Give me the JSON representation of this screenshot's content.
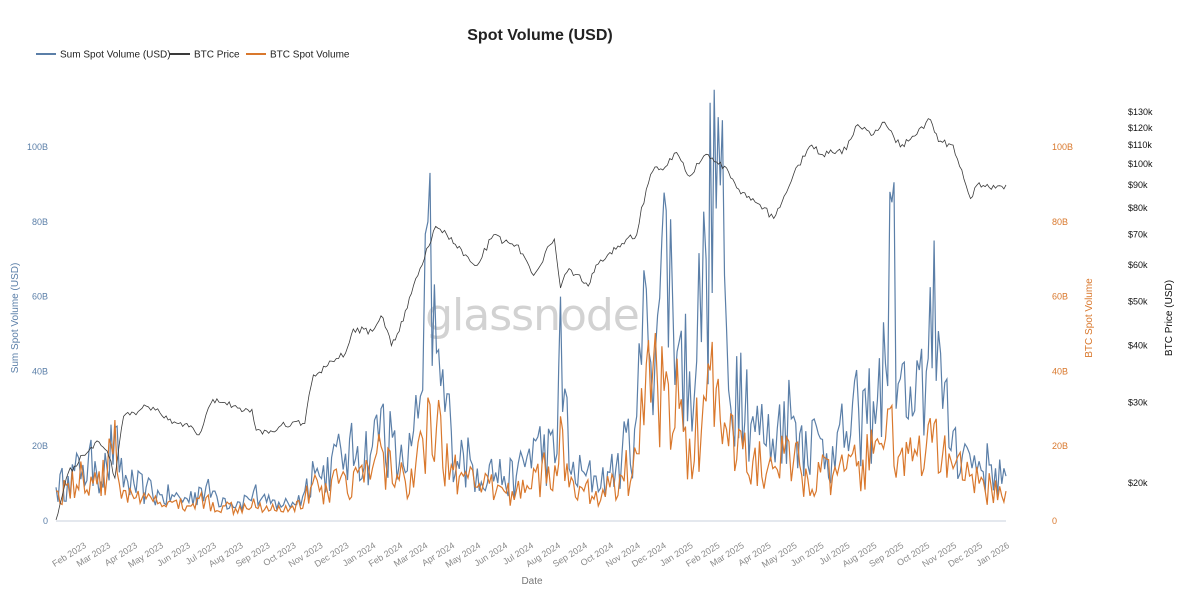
{
  "chart_data": {
    "type": "line",
    "title": "Spot Volume (USD)",
    "xlabel": "Date",
    "y_left_label": "Sum Spot Volume (USD)",
    "y_right_label": "BTC Spot Volume",
    "y_price_label": "BTC Price (USD)",
    "watermark": "glassnode",
    "legend": [
      {
        "name": "Sum Spot Volume (USD)",
        "color": "#5b7fa8"
      },
      {
        "name": "BTC Price",
        "color": "#3a3a3a"
      },
      {
        "name": "BTC Spot Volume",
        "color": "#d9782d"
      }
    ],
    "x_ticks": [
      "Feb 2023",
      "Mar 2023",
      "Apr 2023",
      "May 2023",
      "Jun 2023",
      "Jul 2023",
      "Aug 2023",
      "Sep 2023",
      "Oct 2023",
      "Nov 2023",
      "Dec 2023",
      "Jan 2024",
      "Feb 2024",
      "Mar 2024",
      "Apr 2024",
      "May 2024",
      "Jun 2024",
      "Jul 2024",
      "Aug 2024",
      "Sep 2024",
      "Oct 2024",
      "Nov 2024",
      "Dec 2024",
      "Jan 2025",
      "Feb 2025",
      "Mar 2025",
      "Apr 2025",
      "May 2025",
      "Jun 2025",
      "Jul 2025",
      "Aug 2025",
      "Sep 2025",
      "Oct 2025",
      "Nov 2025",
      "Dec 2025",
      "Jan 2026"
    ],
    "y_left_ticks": [
      "0",
      "20B",
      "40B",
      "60B",
      "80B",
      "100B"
    ],
    "y_right_ticks": [
      "0",
      "20B",
      "40B",
      "60B",
      "80B",
      "100B"
    ],
    "y_price_ticks": [
      "$20k",
      "$30k",
      "$40k",
      "$50k",
      "$60k",
      "$70k",
      "$80k",
      "$90k",
      "$100k",
      "$110k",
      "$120k",
      "$130k"
    ],
    "ylim_volume": [
      0,
      100
    ],
    "price_scale": "log",
    "colors": {
      "sum": "#5b7fa8",
      "price": "#3a3a3a",
      "btc": "#d9782d",
      "left_axis": "#5b7fa8",
      "right_axis": "#d9782d",
      "price_axis": "#111111"
    },
    "series": [
      {
        "name": "Sum Spot Volume (USD)",
        "unit": "billion USD",
        "x": [
          "2023-01-01",
          "2023-01-15",
          "2023-02-01",
          "2023-02-15",
          "2023-03-01",
          "2023-03-10",
          "2023-03-15",
          "2023-04-01",
          "2023-04-15",
          "2023-05-01",
          "2023-05-15",
          "2023-06-01",
          "2023-06-15",
          "2023-07-01",
          "2023-07-15",
          "2023-08-01",
          "2023-08-17",
          "2023-09-01",
          "2023-09-15",
          "2023-10-01",
          "2023-10-15",
          "2023-10-24",
          "2023-11-01",
          "2023-11-15",
          "2023-12-01",
          "2023-12-15",
          "2024-01-01",
          "2024-01-11",
          "2024-02-01",
          "2024-02-15",
          "2024-02-28",
          "2024-03-05",
          "2024-03-15",
          "2024-04-01",
          "2024-04-15",
          "2024-05-01",
          "2024-05-15",
          "2024-06-01",
          "2024-06-15",
          "2024-07-05",
          "2024-08-01",
          "2024-08-05",
          "2024-08-15",
          "2024-09-01",
          "2024-09-15",
          "2024-10-01",
          "2024-10-15",
          "2024-11-01",
          "2024-11-12",
          "2024-11-25",
          "2024-12-05",
          "2024-12-20",
          "2025-01-01",
          "2025-01-20",
          "2025-02-03",
          "2025-02-15",
          "2025-03-01",
          "2025-03-15",
          "2025-04-07",
          "2025-04-20",
          "2025-05-01",
          "2025-05-15",
          "2025-06-01",
          "2025-06-15",
          "2025-07-01",
          "2025-07-15",
          "2025-08-01",
          "2025-08-15",
          "2025-08-20",
          "2025-09-01",
          "2025-09-15",
          "2025-10-01",
          "2025-10-10",
          "2025-10-20",
          "2025-11-01",
          "2025-11-20",
          "2025-12-01",
          "2025-12-15",
          "2026-01-01"
        ],
        "values": [
          9,
          12,
          15,
          16,
          14,
          25,
          13,
          10,
          9,
          7,
          7,
          6,
          9,
          8,
          6,
          5,
          8,
          5,
          5,
          5,
          8,
          16,
          12,
          17,
          18,
          20,
          20,
          30,
          15,
          20,
          35,
          80,
          45,
          24,
          18,
          14,
          15,
          12,
          12,
          22,
          18,
          60,
          14,
          13,
          12,
          13,
          18,
          28,
          62,
          55,
          83,
          48,
          40,
          70,
          108,
          35,
          45,
          28,
          22,
          32,
          28,
          24,
          22,
          20,
          24,
          30,
          32,
          42,
          88,
          38,
          28,
          40,
          75,
          30,
          24,
          18,
          16,
          15,
          12
        ]
      },
      {
        "name": "BTC Spot Volume",
        "unit": "billion USD",
        "x": [
          "2023-01-01",
          "2023-01-15",
          "2023-02-01",
          "2023-02-15",
          "2023-03-01",
          "2023-03-10",
          "2023-03-15",
          "2023-04-01",
          "2023-04-15",
          "2023-05-01",
          "2023-05-15",
          "2023-06-01",
          "2023-06-15",
          "2023-07-01",
          "2023-07-15",
          "2023-08-01",
          "2023-08-17",
          "2023-09-01",
          "2023-09-15",
          "2023-10-01",
          "2023-10-15",
          "2023-10-24",
          "2023-11-01",
          "2023-11-15",
          "2023-12-01",
          "2023-12-15",
          "2024-01-01",
          "2024-01-11",
          "2024-02-01",
          "2024-02-15",
          "2024-02-28",
          "2024-03-05",
          "2024-03-15",
          "2024-04-01",
          "2024-04-15",
          "2024-05-01",
          "2024-05-15",
          "2024-06-01",
          "2024-06-15",
          "2024-07-05",
          "2024-08-01",
          "2024-08-05",
          "2024-08-15",
          "2024-09-01",
          "2024-09-15",
          "2024-10-01",
          "2024-10-15",
          "2024-11-01",
          "2024-11-12",
          "2024-11-25",
          "2024-12-05",
          "2024-12-20",
          "2025-01-01",
          "2025-01-20",
          "2025-02-03",
          "2025-02-15",
          "2025-03-01",
          "2025-03-15",
          "2025-04-07",
          "2025-04-20",
          "2025-05-01",
          "2025-05-15",
          "2025-06-01",
          "2025-06-15",
          "2025-07-01",
          "2025-07-15",
          "2025-08-01",
          "2025-08-15",
          "2025-08-20",
          "2025-09-01",
          "2025-09-15",
          "2025-10-01",
          "2025-10-10",
          "2025-10-20",
          "2025-11-01",
          "2025-11-20",
          "2025-12-01",
          "2025-12-15",
          "2026-01-01"
        ],
        "values": [
          8,
          10,
          12,
          13,
          12,
          27,
          10,
          6,
          6,
          5,
          5,
          4,
          6,
          5,
          4,
          4,
          6,
          4,
          4,
          4,
          6,
          10,
          8,
          11,
          12,
          13,
          14,
          20,
          11,
          14,
          22,
          33,
          25,
          15,
          12,
          9,
          10,
          8,
          8,
          14,
          12,
          28,
          9,
          8,
          8,
          9,
          12,
          18,
          42,
          36,
          40,
          30,
          22,
          32,
          38,
          20,
          24,
          16,
          14,
          18,
          16,
          14,
          13,
          12,
          14,
          16,
          18,
          22,
          30,
          18,
          16,
          20,
          26,
          18,
          14,
          12,
          10,
          9,
          8
        ]
      },
      {
        "name": "BTC Price",
        "unit": "USD",
        "x": [
          "2023-01-01",
          "2023-01-15",
          "2023-02-01",
          "2023-02-15",
          "2023-03-01",
          "2023-03-10",
          "2023-03-20",
          "2023-04-01",
          "2023-04-15",
          "2023-05-01",
          "2023-05-15",
          "2023-06-01",
          "2023-06-15",
          "2023-07-01",
          "2023-07-15",
          "2023-08-01",
          "2023-08-15",
          "2023-08-20",
          "2023-09-01",
          "2023-09-15",
          "2023-10-01",
          "2023-10-15",
          "2023-10-25",
          "2023-11-01",
          "2023-11-15",
          "2023-12-01",
          "2023-12-10",
          "2024-01-01",
          "2024-01-11",
          "2024-01-23",
          "2024-02-01",
          "2024-02-15",
          "2024-03-01",
          "2024-03-14",
          "2024-04-01",
          "2024-04-15",
          "2024-05-01",
          "2024-05-20",
          "2024-06-01",
          "2024-06-15",
          "2024-07-05",
          "2024-07-29",
          "2024-08-05",
          "2024-08-15",
          "2024-09-06",
          "2024-09-15",
          "2024-10-01",
          "2024-10-15",
          "2024-11-01",
          "2024-11-12",
          "2024-11-22",
          "2024-12-01",
          "2024-12-17",
          "2025-01-01",
          "2025-01-20",
          "2025-02-01",
          "2025-02-15",
          "2025-03-01",
          "2025-03-15",
          "2025-04-08",
          "2025-04-20",
          "2025-05-01",
          "2025-05-22",
          "2025-06-01",
          "2025-06-15",
          "2025-07-01",
          "2025-07-14",
          "2025-08-01",
          "2025-08-14",
          "2025-09-01",
          "2025-09-15",
          "2025-10-06",
          "2025-10-15",
          "2025-11-01",
          "2025-11-21",
          "2025-12-01",
          "2025-12-15",
          "2026-01-01"
        ],
        "values": [
          16600,
          21000,
          23000,
          24500,
          23500,
          20500,
          28000,
          28500,
          29500,
          28500,
          27000,
          27000,
          25500,
          30500,
          30000,
          29200,
          29000,
          26100,
          26000,
          26500,
          27200,
          27000,
          34500,
          35000,
          37000,
          38500,
          43500,
          43000,
          46500,
          40000,
          43000,
          52000,
          62000,
          73000,
          69000,
          63000,
          60000,
          70000,
          67500,
          66500,
          57000,
          68500,
          53500,
          59000,
          54000,
          60000,
          64000,
          67000,
          70000,
          88000,
          98500,
          97000,
          106000,
          94000,
          105000,
          101000,
          96000,
          86000,
          84000,
          76000,
          85000,
          95000,
          110000,
          105000,
          106000,
          107500,
          122000,
          116000,
          123500,
          109000,
          115000,
          125000,
          112000,
          110000,
          84000,
          91000,
          88000,
          90000
        ]
      }
    ]
  }
}
